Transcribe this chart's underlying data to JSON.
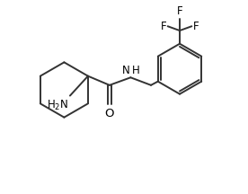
{
  "bg_color": "#ffffff",
  "line_color": "#333333",
  "line_width": 1.4,
  "font_size": 8.5,
  "figsize": [
    2.76,
    2.16
  ],
  "dpi": 100,
  "xlim": [
    0,
    10
  ],
  "ylim": [
    0,
    8
  ]
}
